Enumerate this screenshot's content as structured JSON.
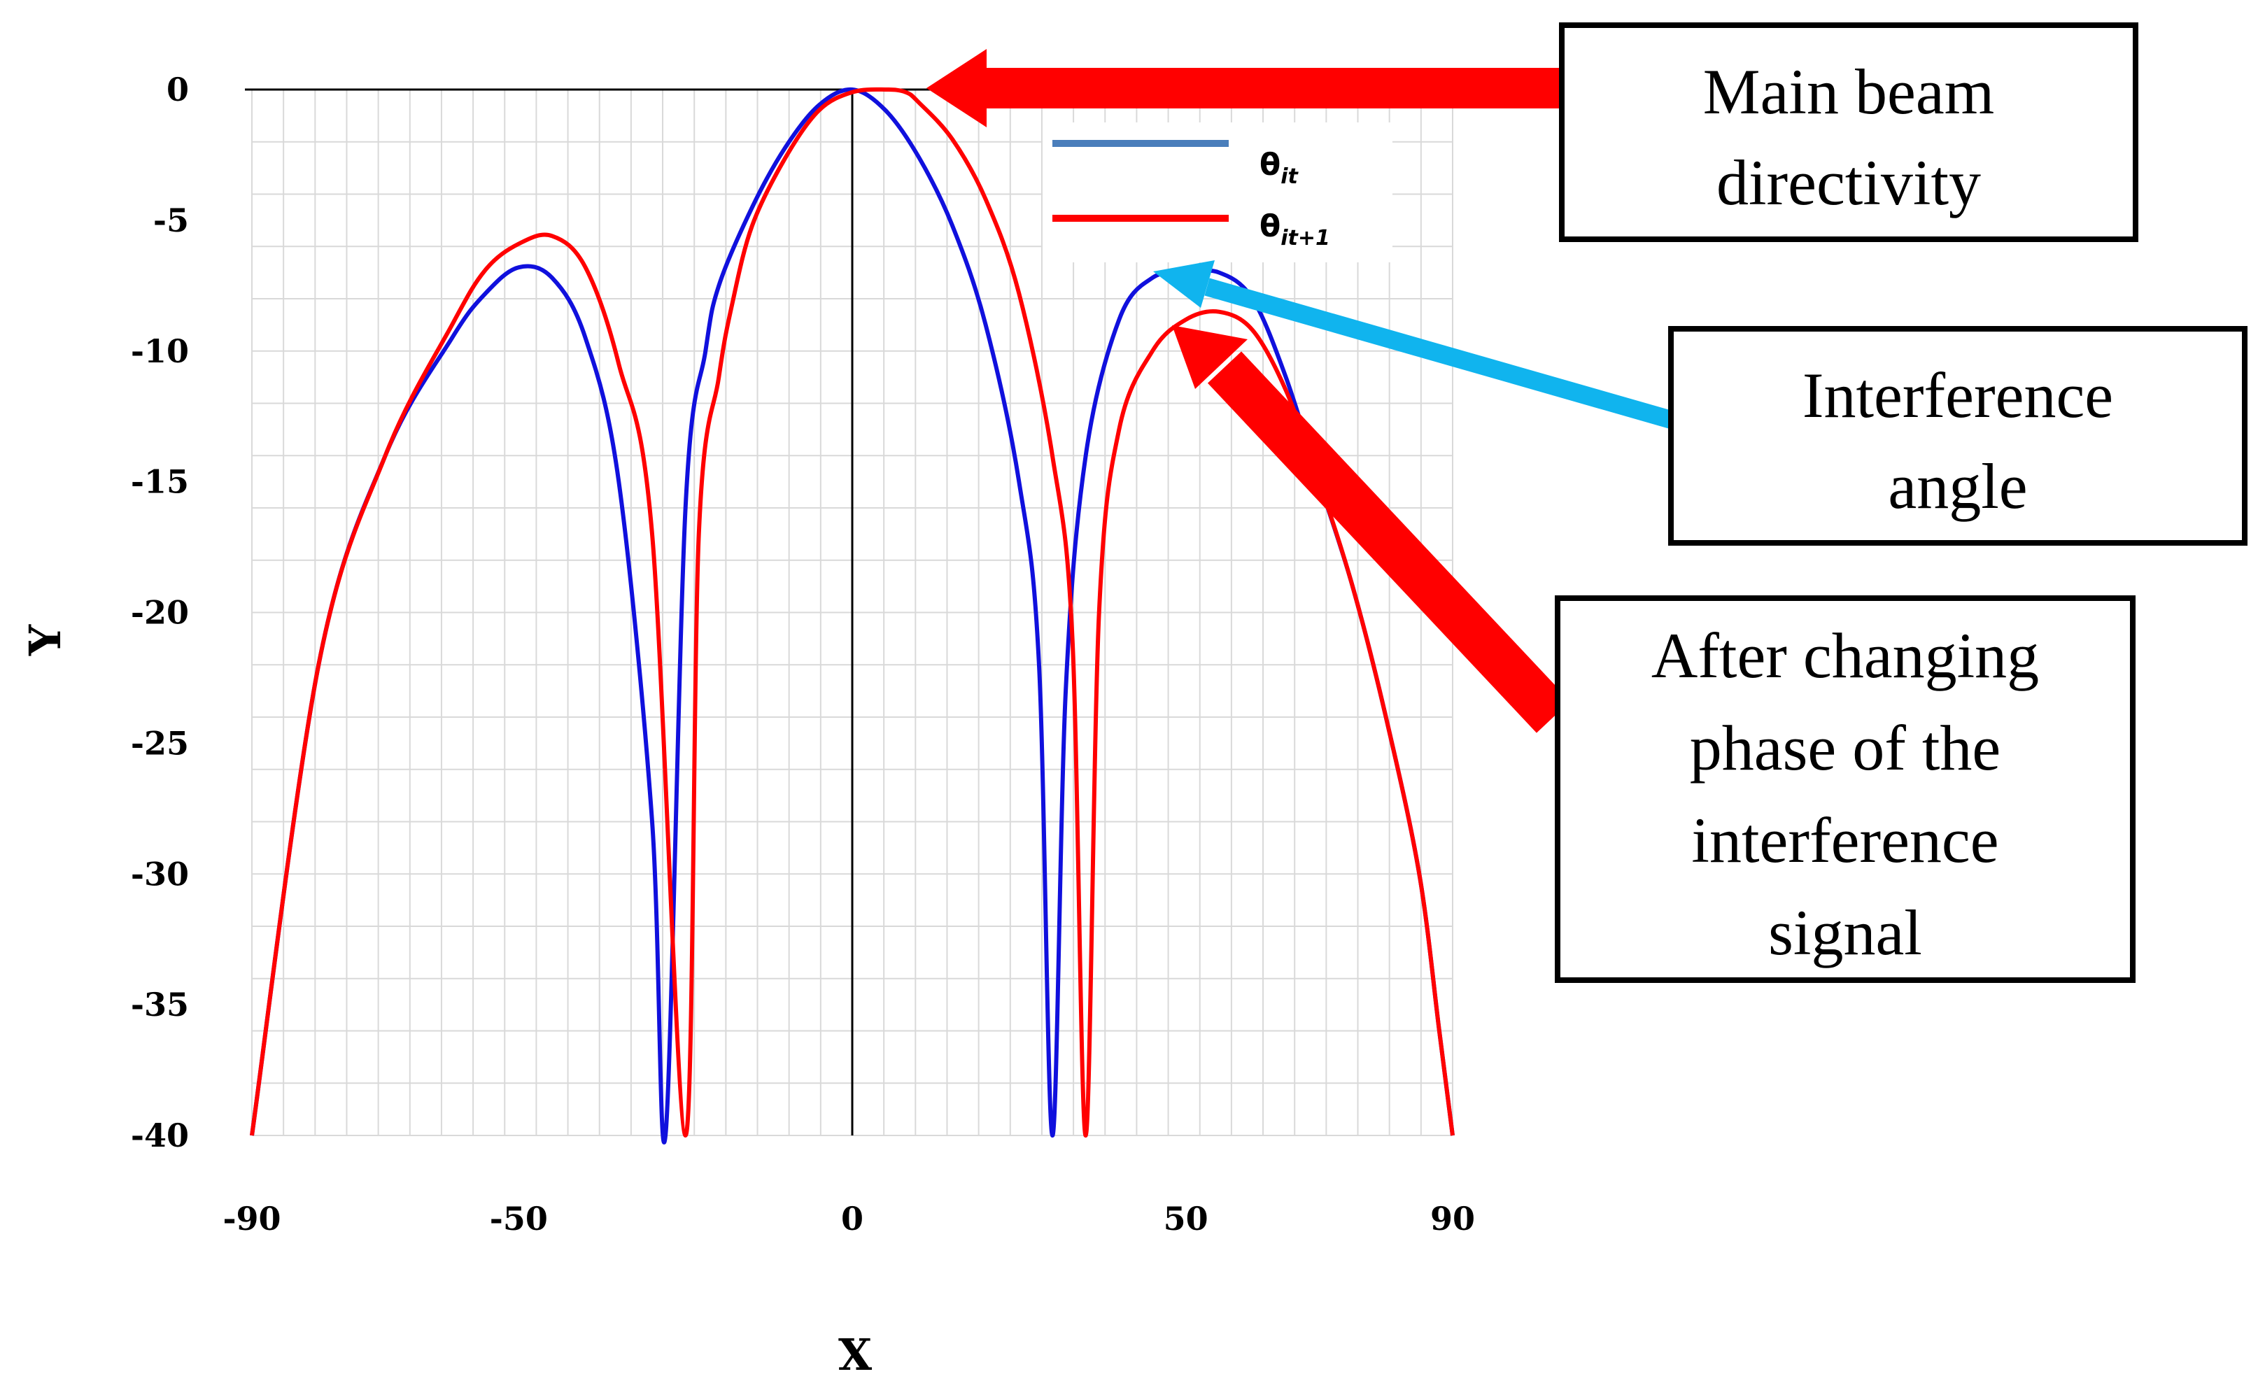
{
  "chart_data": {
    "type": "line",
    "title": "",
    "xlabel": "X",
    "ylabel": "Y",
    "xlim": [
      -90,
      90
    ],
    "ylim": [
      -40,
      0
    ],
    "grid": true,
    "x_ticks": [
      -90,
      -50,
      0,
      50,
      90
    ],
    "x_tick_labels": [
      "-90",
      "-50",
      "0",
      "50",
      "90"
    ],
    "y_ticks": [
      0,
      -5,
      -10,
      -15,
      -20,
      -25,
      -30,
      -35,
      -40
    ],
    "y_tick_labels": [
      "0",
      "-5",
      "-10",
      "-15",
      "-20",
      "-25",
      "-30",
      "-35",
      "-40"
    ],
    "legend": {
      "placement": "top-center",
      "entries": [
        {
          "name": "θ",
          "sub": "it",
          "color": "#4a7ebb"
        },
        {
          "name": "θ",
          "sub": "it+1",
          "color": "#ff0000"
        }
      ]
    },
    "series": [
      {
        "name": "θit",
        "color": "#1010dd",
        "x": [
          -90,
          -80,
          -70,
          -60,
          -55,
          -50,
          -45,
          -40,
          -35,
          -30,
          -28,
          -25,
          -22,
          -20,
          -15,
          -10,
          -5,
          0,
          5,
          10,
          15,
          20,
          25,
          28,
          30,
          32,
          35,
          40,
          45,
          50,
          55,
          60,
          65,
          70,
          75,
          80,
          85,
          88,
          90
        ],
        "y": [
          -40,
          -22,
          -14,
          -9.5,
          -7.8,
          -6.8,
          -7.2,
          -9.5,
          -15,
          -28,
          -40,
          -16,
          -10,
          -7.5,
          -4.5,
          -2.2,
          -0.6,
          0,
          -0.8,
          -2.6,
          -5.2,
          -9,
          -15,
          -22,
          -40,
          -23,
          -14,
          -8.8,
          -7.2,
          -7.0,
          -7.0,
          -8,
          -11,
          -15,
          -19,
          -24,
          -30,
          -36,
          -40
        ]
      },
      {
        "name": "θit+1",
        "color": "#ff0000",
        "x": [
          -90,
          -80,
          -70,
          -60,
          -55,
          -50,
          -45,
          -40,
          -35,
          -30,
          -25,
          -23,
          -20,
          -18,
          -15,
          -10,
          -5,
          0,
          5,
          8,
          10,
          15,
          20,
          25,
          30,
          33,
          35,
          37,
          40,
          45,
          50,
          55,
          60,
          65,
          70,
          75,
          80,
          85,
          88,
          90
        ],
        "y": [
          -40,
          -22,
          -14,
          -9,
          -6.9,
          -5.9,
          -5.6,
          -6.8,
          -10.5,
          -17,
          -40,
          -17,
          -11,
          -8.2,
          -5.2,
          -2.6,
          -0.8,
          -0.1,
          0,
          -0.1,
          -0.5,
          -1.9,
          -4.2,
          -7.8,
          -14,
          -21,
          -40,
          -20,
          -13,
          -10,
          -8.8,
          -8.5,
          -9.2,
          -11.5,
          -15,
          -19,
          -24,
          -30,
          -36,
          -40
        ]
      }
    ],
    "annotations": [
      {
        "id": "main-beam",
        "lines": [
          "Main beam",
          "directivity"
        ],
        "points_to": {
          "x": 12,
          "y": 0
        },
        "arrow_color": "#ff0000"
      },
      {
        "id": "interference-angle",
        "lines": [
          "Interference",
          "angle"
        ],
        "points_to": {
          "x": 49,
          "y": -7.2
        },
        "arrow_color": "#10b4ee"
      },
      {
        "id": "after-changing",
        "lines": [
          "After changing",
          "phase of the",
          "interference",
          "signal"
        ],
        "points_to": {
          "x": 53,
          "y": -9.2
        },
        "arrow_color": "#ff0000"
      }
    ]
  }
}
